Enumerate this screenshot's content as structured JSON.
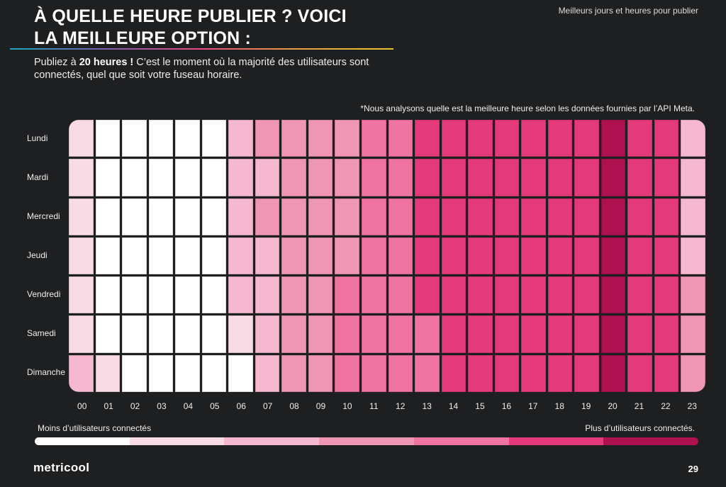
{
  "header": {
    "title_line1": "À QUELLE HEURE PUBLIER ? VOICI",
    "title_line2": "LA MEILLEURE OPTION :",
    "section": "Meilleurs jours et heures pour publier",
    "subtitle_pre": "Publiez à ",
    "subtitle_bold": "20 heures !",
    "subtitle_post": " C’est le moment où la majorité des utilisateurs sont connectés, quel que soit votre fuseau horaire."
  },
  "note": "*Nous analysons quelle est la meilleure heure selon les données fournies par l’API Meta.",
  "footer": {
    "logo": "metricool",
    "page": "29"
  },
  "colors": [
    "#ffffff",
    "#f9dbe5",
    "#f5b8cf",
    "#f096b5",
    "#f074a0",
    "#e43a7b",
    "#ad114f"
  ],
  "chart_data": {
    "type": "heatmap",
    "title": "Meilleurs jours et heures pour publier",
    "value_scale": "0 = moins d’utilisateurs connectés, 6 = plus d’utilisateurs connectés",
    "rows": [
      "Lundi",
      "Mardi",
      "Mercredi",
      "Jeudi",
      "Vendredi",
      "Samedi",
      "Dimanche"
    ],
    "columns": [
      "00",
      "01",
      "02",
      "03",
      "04",
      "05",
      "06",
      "07",
      "08",
      "09",
      "10",
      "11",
      "12",
      "13",
      "14",
      "15",
      "16",
      "17",
      "18",
      "19",
      "20",
      "21",
      "22",
      "23"
    ],
    "values": [
      [
        1,
        0,
        0,
        0,
        0,
        0,
        2,
        3,
        3,
        3,
        3,
        4,
        4,
        5,
        5,
        5,
        5,
        5,
        5,
        5,
        6,
        5,
        5,
        2
      ],
      [
        1,
        0,
        0,
        0,
        0,
        0,
        2,
        2,
        3,
        3,
        3,
        4,
        4,
        5,
        5,
        5,
        5,
        5,
        5,
        5,
        6,
        5,
        5,
        2
      ],
      [
        1,
        0,
        0,
        0,
        0,
        0,
        2,
        3,
        3,
        3,
        3,
        4,
        4,
        5,
        5,
        5,
        5,
        5,
        5,
        5,
        6,
        5,
        5,
        2
      ],
      [
        1,
        0,
        0,
        0,
        0,
        0,
        2,
        2,
        3,
        3,
        3,
        4,
        4,
        5,
        5,
        5,
        5,
        5,
        5,
        5,
        6,
        5,
        5,
        2
      ],
      [
        1,
        0,
        0,
        0,
        0,
        0,
        2,
        2,
        3,
        3,
        4,
        4,
        4,
        5,
        5,
        5,
        5,
        5,
        5,
        5,
        6,
        5,
        5,
        3
      ],
      [
        1,
        0,
        0,
        0,
        0,
        0,
        1,
        2,
        3,
        3,
        4,
        4,
        4,
        4,
        5,
        5,
        5,
        5,
        5,
        5,
        6,
        5,
        5,
        3
      ],
      [
        2,
        1,
        0,
        0,
        0,
        0,
        0,
        2,
        3,
        3,
        4,
        4,
        4,
        4,
        5,
        5,
        5,
        5,
        5,
        5,
        6,
        5,
        5,
        3
      ]
    ],
    "legend": {
      "low": "Moins d’utilisateurs connectés",
      "high": "Plus d’utilisateurs connectés.",
      "levels": 7
    }
  }
}
